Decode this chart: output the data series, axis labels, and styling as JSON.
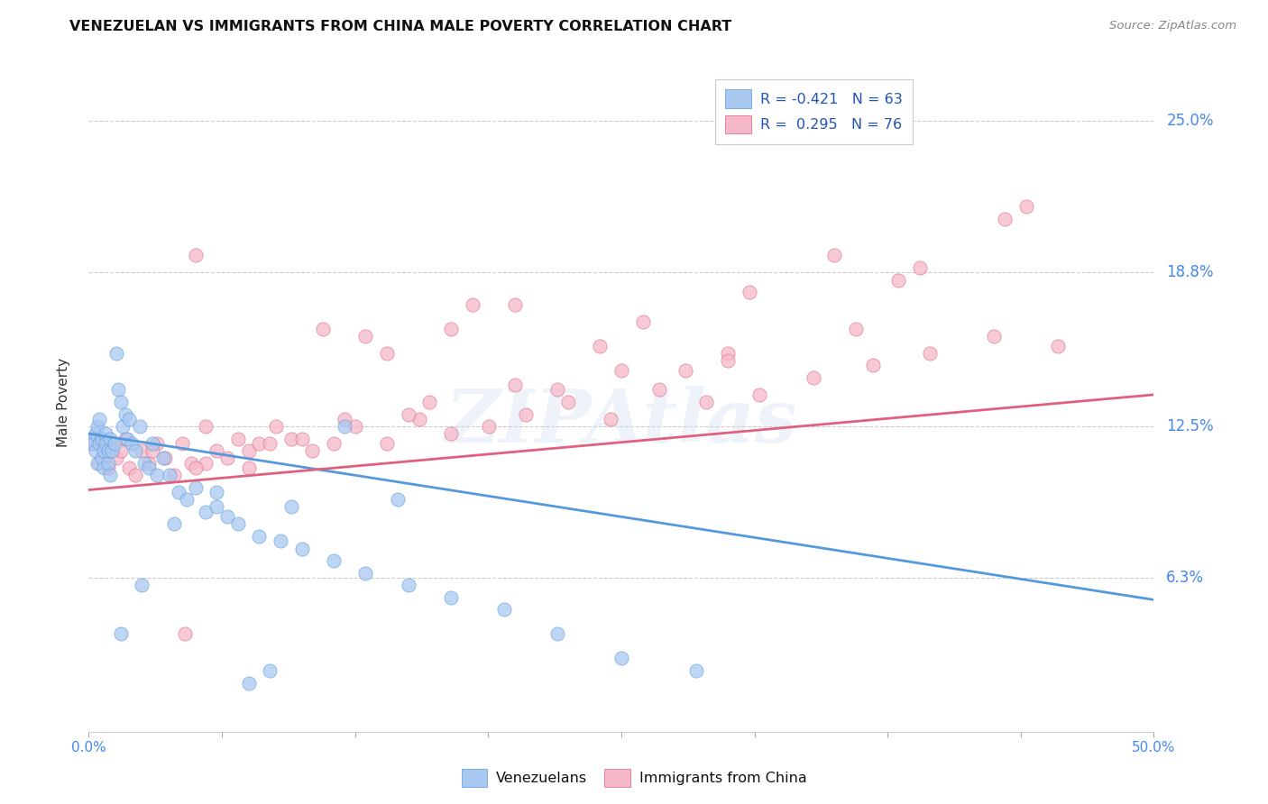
{
  "title": "VENEZUELAN VS IMMIGRANTS FROM CHINA MALE POVERTY CORRELATION CHART",
  "source": "Source: ZipAtlas.com",
  "ylabel": "Male Poverty",
  "ytick_labels": [
    "6.3%",
    "12.5%",
    "18.8%",
    "25.0%"
  ],
  "ytick_values": [
    0.063,
    0.125,
    0.188,
    0.25
  ],
  "xlim": [
    0.0,
    0.5
  ],
  "ylim": [
    0.0,
    0.27
  ],
  "xtick_positions": [
    0.0,
    0.0625,
    0.125,
    0.1875,
    0.25,
    0.3125,
    0.375,
    0.4375,
    0.5
  ],
  "watermark_text": "ZIPAtlas",
  "legend_entry1": "R = -0.421   N = 63",
  "legend_entry2": "R =  0.295   N = 76",
  "legend_label1": "Venezuelans",
  "legend_label2": "Immigrants from China",
  "blue_scatter_color": "#A8C8F0",
  "pink_scatter_color": "#F5B8C8",
  "blue_line_color": "#5599DD",
  "pink_line_color": "#E06080",
  "blue_line_start_y": 0.122,
  "blue_line_end_y": 0.054,
  "pink_line_start_y": 0.099,
  "pink_line_end_y": 0.138,
  "venezuelans_x": [
    0.001,
    0.002,
    0.003,
    0.003,
    0.004,
    0.004,
    0.005,
    0.005,
    0.006,
    0.006,
    0.007,
    0.007,
    0.008,
    0.008,
    0.009,
    0.009,
    0.01,
    0.01,
    0.011,
    0.012,
    0.013,
    0.014,
    0.015,
    0.016,
    0.017,
    0.018,
    0.019,
    0.02,
    0.022,
    0.024,
    0.026,
    0.028,
    0.03,
    0.032,
    0.035,
    0.038,
    0.042,
    0.046,
    0.05,
    0.055,
    0.06,
    0.065,
    0.07,
    0.08,
    0.09,
    0.1,
    0.115,
    0.13,
    0.15,
    0.17,
    0.195,
    0.22,
    0.25,
    0.285,
    0.12,
    0.145,
    0.06,
    0.04,
    0.025,
    0.015,
    0.075,
    0.085,
    0.095
  ],
  "venezuelans_y": [
    0.12,
    0.118,
    0.122,
    0.115,
    0.125,
    0.11,
    0.118,
    0.128,
    0.112,
    0.12,
    0.115,
    0.108,
    0.122,
    0.118,
    0.11,
    0.115,
    0.105,
    0.12,
    0.115,
    0.118,
    0.155,
    0.14,
    0.135,
    0.125,
    0.13,
    0.12,
    0.128,
    0.118,
    0.115,
    0.125,
    0.11,
    0.108,
    0.118,
    0.105,
    0.112,
    0.105,
    0.098,
    0.095,
    0.1,
    0.09,
    0.092,
    0.088,
    0.085,
    0.08,
    0.078,
    0.075,
    0.07,
    0.065,
    0.06,
    0.055,
    0.05,
    0.04,
    0.03,
    0.025,
    0.125,
    0.095,
    0.098,
    0.085,
    0.06,
    0.04,
    0.02,
    0.025,
    0.092
  ],
  "china_x": [
    0.001,
    0.003,
    0.005,
    0.007,
    0.009,
    0.011,
    0.013,
    0.015,
    0.017,
    0.019,
    0.022,
    0.025,
    0.028,
    0.032,
    0.036,
    0.04,
    0.044,
    0.048,
    0.055,
    0.06,
    0.065,
    0.07,
    0.075,
    0.08,
    0.088,
    0.095,
    0.105,
    0.115,
    0.125,
    0.14,
    0.155,
    0.17,
    0.188,
    0.205,
    0.225,
    0.245,
    0.268,
    0.29,
    0.315,
    0.34,
    0.368,
    0.395,
    0.425,
    0.455,
    0.03,
    0.055,
    0.085,
    0.12,
    0.16,
    0.2,
    0.25,
    0.3,
    0.36,
    0.05,
    0.1,
    0.15,
    0.22,
    0.3,
    0.05,
    0.2,
    0.14,
    0.35,
    0.43,
    0.39,
    0.26,
    0.18,
    0.13,
    0.31,
    0.075,
    0.44,
    0.11,
    0.38,
    0.28,
    0.045,
    0.17,
    0.24
  ],
  "china_y": [
    0.118,
    0.12,
    0.11,
    0.115,
    0.108,
    0.118,
    0.112,
    0.115,
    0.12,
    0.108,
    0.105,
    0.115,
    0.11,
    0.118,
    0.112,
    0.105,
    0.118,
    0.11,
    0.125,
    0.115,
    0.112,
    0.12,
    0.115,
    0.118,
    0.125,
    0.12,
    0.115,
    0.118,
    0.125,
    0.118,
    0.128,
    0.122,
    0.125,
    0.13,
    0.135,
    0.128,
    0.14,
    0.135,
    0.138,
    0.145,
    0.15,
    0.155,
    0.162,
    0.158,
    0.115,
    0.11,
    0.118,
    0.128,
    0.135,
    0.142,
    0.148,
    0.155,
    0.165,
    0.108,
    0.12,
    0.13,
    0.14,
    0.152,
    0.195,
    0.175,
    0.155,
    0.195,
    0.21,
    0.19,
    0.168,
    0.175,
    0.162,
    0.18,
    0.108,
    0.215,
    0.165,
    0.185,
    0.148,
    0.04,
    0.165,
    0.158
  ]
}
